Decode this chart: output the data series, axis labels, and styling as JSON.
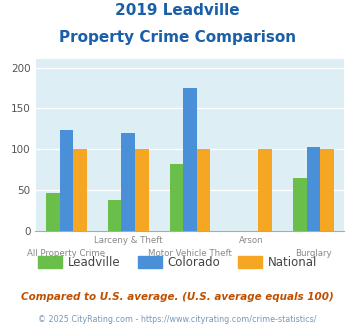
{
  "title_line1": "2019 Leadville",
  "title_line2": "Property Crime Comparison",
  "categories": [
    "All Property Crime",
    "Larceny & Theft",
    "Motor Vehicle Theft",
    "Arson",
    "Burglary"
  ],
  "category_labels_top": [
    "",
    "Larceny & Theft",
    "",
    "Arson",
    ""
  ],
  "category_labels_bot": [
    "All Property Crime",
    "",
    "Motor Vehicle Theft",
    "",
    "Burglary"
  ],
  "leadville": [
    47,
    38,
    82,
    0,
    65
  ],
  "colorado": [
    123,
    120,
    175,
    0,
    103
  ],
  "national": [
    100,
    100,
    100,
    100,
    100
  ],
  "arson_idx": 3,
  "leadville_color": "#6abf4b",
  "colorado_color": "#4a90d9",
  "national_color": "#f5a623",
  "bg_color": "#ddeef5",
  "ylim": [
    0,
    210
  ],
  "yticks": [
    0,
    50,
    100,
    150,
    200
  ],
  "footnote1": "Compared to U.S. average. (U.S. average equals 100)",
  "footnote2": "© 2025 CityRating.com - https://www.cityrating.com/crime-statistics/",
  "title_color": "#1a5fa8",
  "footnote1_color": "#c05000",
  "footnote2_color": "#7799bb",
  "label_color": "#888888"
}
